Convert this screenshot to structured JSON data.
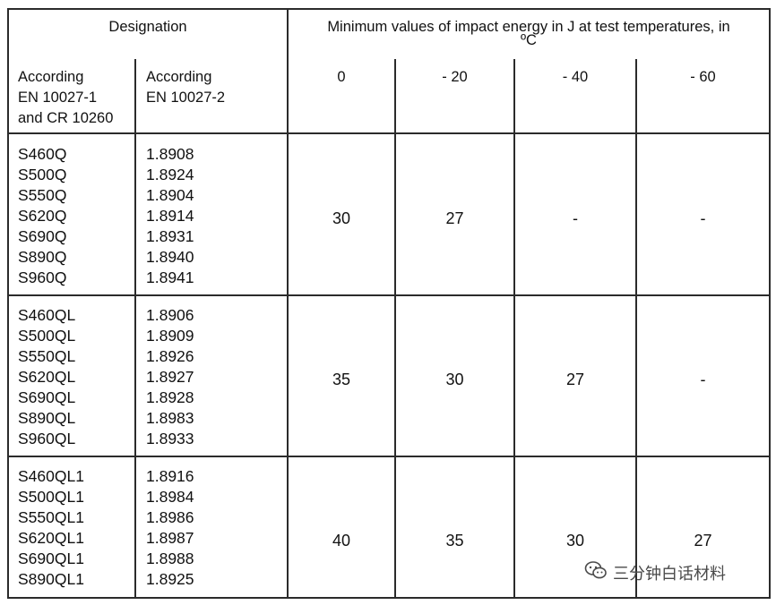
{
  "header": {
    "designation": "Designation",
    "min_values": "Minimum values of impact energy in J at test temperatures, in",
    "unit": "ºC",
    "col1": [
      "According",
      "EN 10027-1",
      "and CR 10260"
    ],
    "col2": [
      "According",
      "EN 10027-2"
    ],
    "temps": [
      "0",
      "- 20",
      "- 40",
      "- 60"
    ]
  },
  "groups": [
    {
      "grades": [
        "S460Q",
        "S500Q",
        "S550Q",
        "S620Q",
        "S690Q",
        "S890Q",
        "S960Q"
      ],
      "numbers": [
        "1.8908",
        "1.8924",
        "1.8904",
        "1.8914",
        "1.8931",
        "1.8940",
        "1.8941"
      ],
      "values": [
        "30",
        "27",
        "-",
        "-"
      ]
    },
    {
      "grades": [
        "S460QL",
        "S500QL",
        "S550QL",
        "S620QL",
        "S690QL",
        "S890QL",
        "S960QL"
      ],
      "numbers": [
        "1.8906",
        "1.8909",
        "1.8926",
        "1.8927",
        "1.8928",
        "1.8983",
        "1.8933"
      ],
      "values": [
        "35",
        "30",
        "27",
        "-"
      ]
    },
    {
      "grades": [
        "S460QL1",
        "S500QL1",
        "S550QL1",
        "S620QL1",
        "S690QL1",
        "S890QL1"
      ],
      "numbers": [
        "1.8916",
        "1.8984",
        "1.8986",
        "1.8987",
        "1.8988",
        "1.8925"
      ],
      "values": [
        "40",
        "35",
        "30",
        "27"
      ]
    }
  ],
  "watermark": {
    "text": "三分钟白话材料",
    "icon": "wechat-icon"
  }
}
